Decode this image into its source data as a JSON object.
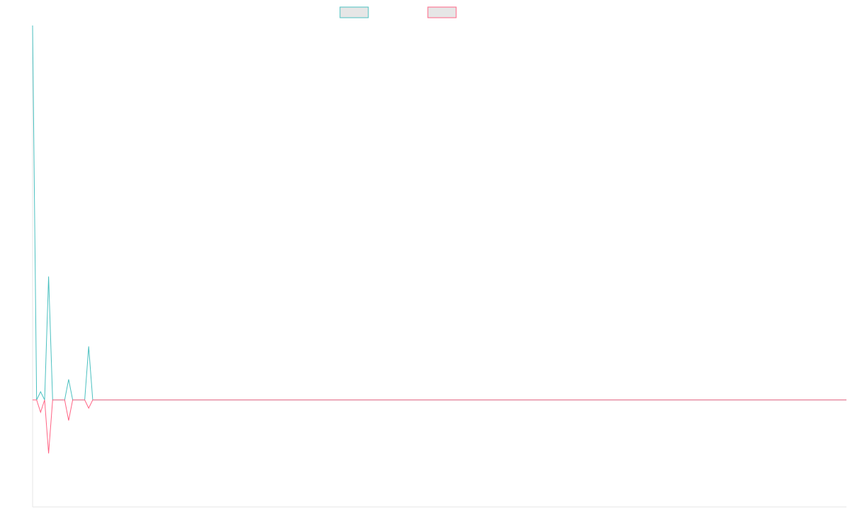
{
  "chart_data": {
    "type": "line",
    "title": "",
    "xlabel": "",
    "ylabel": "",
    "x_count": 100,
    "ylim": [
      -26,
      91
    ],
    "grid": false,
    "legend_placement": "top-center",
    "series": [
      {
        "color": "#4bc0c0",
        "fill": "#e6e6e6",
        "values": [
          91,
          0,
          2,
          0,
          30,
          0,
          0,
          0,
          0,
          5,
          0,
          0,
          0,
          0,
          13,
          0,
          0,
          0,
          0,
          0,
          0,
          0,
          0,
          0,
          0,
          0,
          0,
          0,
          0,
          0,
          0,
          0,
          0,
          0,
          0,
          0,
          0,
          0,
          0,
          0,
          0,
          0,
          0,
          0,
          0,
          0,
          0,
          0,
          0,
          0,
          0,
          0,
          0,
          0,
          0,
          0,
          0,
          0,
          0,
          0,
          0,
          0,
          0,
          0,
          0,
          0,
          0,
          0,
          0,
          0,
          0,
          0,
          0,
          0,
          0,
          0,
          0,
          0,
          0,
          0,
          0,
          0,
          0,
          0,
          0,
          0,
          0,
          0,
          0,
          0,
          0,
          0,
          0,
          0,
          0,
          0,
          0,
          0,
          0,
          0
        ]
      },
      {
        "color": "#ff6384",
        "fill": "#e6e6e6",
        "values": [
          0,
          0,
          -3,
          0,
          -13,
          0,
          0,
          0,
          0,
          -5,
          0,
          0,
          0,
          0,
          -2,
          0,
          0,
          0,
          0,
          0,
          0,
          0,
          0,
          0,
          0,
          0,
          0,
          0,
          0,
          0,
          0,
          0,
          0,
          0,
          0,
          0,
          0,
          0,
          0,
          0,
          0,
          0,
          0,
          0,
          0,
          0,
          0,
          0,
          0,
          0,
          0,
          0,
          0,
          0,
          0,
          0,
          0,
          0,
          0,
          0,
          0,
          0,
          0,
          0,
          0,
          0,
          0,
          0,
          0,
          0,
          0,
          0,
          0,
          0,
          0,
          0,
          0,
          0,
          0,
          0,
          0,
          0,
          0,
          0,
          0,
          0,
          0,
          0,
          0,
          0,
          0,
          0,
          0,
          0,
          0,
          0,
          0,
          0,
          0,
          0
        ]
      }
    ]
  }
}
